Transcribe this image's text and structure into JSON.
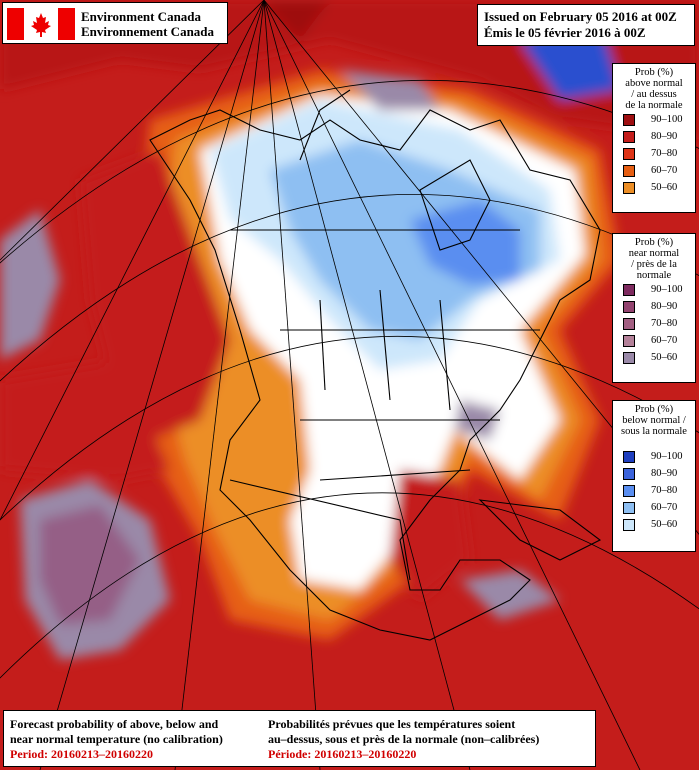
{
  "header": {
    "agency_en": "Environment Canada",
    "agency_fr": "Environnement Canada",
    "issued_en": "Issued on February 05 2016 at 00Z",
    "issued_fr": "Émis le 05 février 2016 à 00Z"
  },
  "legends": {
    "above": {
      "title": [
        "Prob (%)",
        "above normal",
        "/ au dessus",
        "de la normale"
      ],
      "ranges": [
        "90–100",
        "80–90",
        "70–80",
        "60–70",
        "50–60"
      ],
      "colors": [
        "#9e0e10",
        "#c41d1b",
        "#de3417",
        "#e65e12",
        "#ec8e26"
      ]
    },
    "near": {
      "title": [
        "Prob (%)",
        "near normal",
        "/ près de la",
        "normale"
      ],
      "ranges": [
        "90–100",
        "80–90",
        "70–80",
        "60–70",
        "50–60"
      ],
      "colors": [
        "#7e2a5f",
        "#93436f",
        "#a35f82",
        "#b48199",
        "#9a89a8"
      ]
    },
    "below": {
      "title": [
        "Prob (%)",
        "below normal /",
        "sous la normale"
      ],
      "ranges": [
        "90–100",
        "80–90",
        "70–80",
        "60–70",
        "50–60"
      ],
      "colors": [
        "#1f3fbf",
        "#3b63db",
        "#5a8ef0",
        "#8ebff2",
        "#cde7fb"
      ]
    }
  },
  "footer": {
    "en_line1": "Forecast probability of above, below and",
    "en_line2": "near normal temperature (no calibration)",
    "en_period": "Period: 20160213–20160220",
    "fr_line1": "Probabilités prévues que les températures soient",
    "fr_line2": "au–dessus, sous et près de la normale (non–calibrées)",
    "fr_period": "Période: 20160213–20160220"
  }
}
